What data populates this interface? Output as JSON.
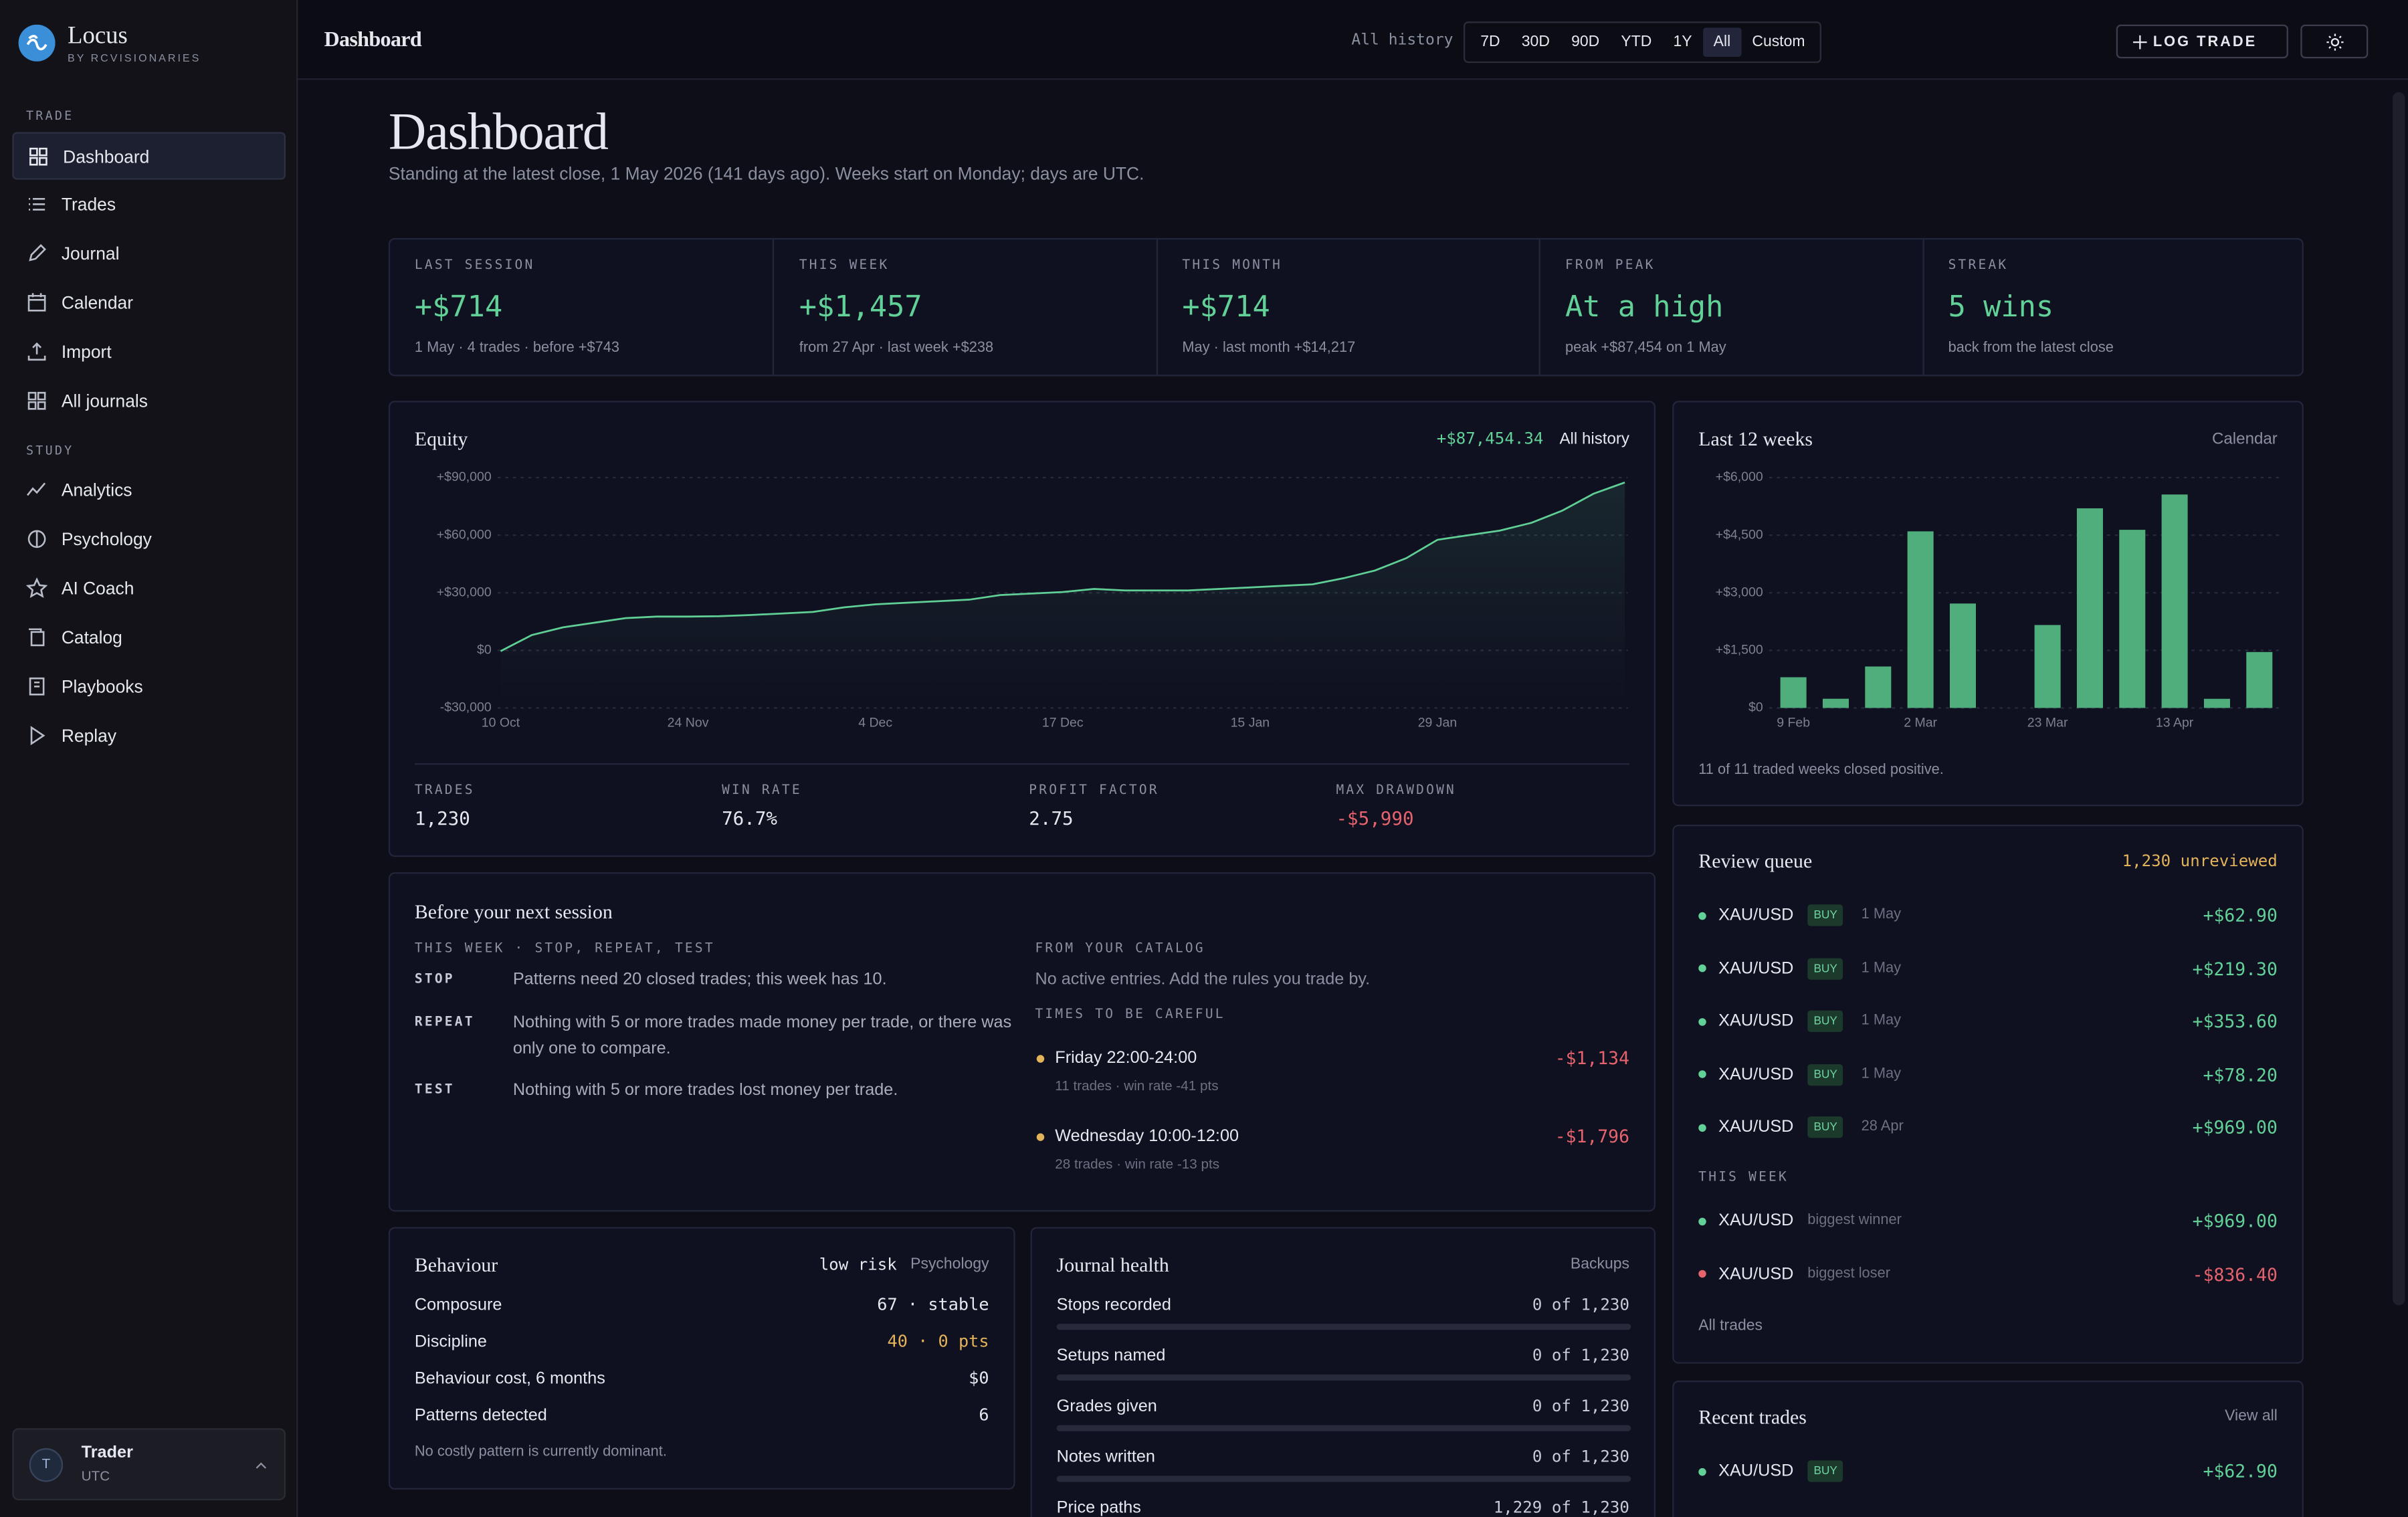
{
  "sidebar": {
    "brand": {
      "name": "Locus",
      "tagline": "BY RCVISIONARIES"
    },
    "active_item": "Dashboard",
    "sections": [
      {
        "title": "TRADE",
        "items": [
          "Dashboard",
          "Trades",
          "Journal",
          "Calendar",
          "Import",
          "All journals"
        ]
      },
      {
        "title": "STUDY",
        "items": [
          "Analytics",
          "Psychology",
          "AI Coach",
          "Catalog",
          "Playbooks",
          "Replay"
        ]
      }
    ],
    "user": {
      "initial": "T",
      "name": "Trader",
      "timezone": "UTC"
    }
  },
  "topbar": {
    "title": "Dashboard",
    "range_label": "All history",
    "ranges": [
      "7D",
      "30D",
      "90D",
      "YTD",
      "1Y",
      "All",
      "Custom"
    ],
    "selected_range": "All",
    "log_trade": "LOG TRADE"
  },
  "header": {
    "title": "Dashboard",
    "subtitle": "Standing at the latest close, 1 May 2026 (141 days ago). Weeks start on Monday; days are UTC."
  },
  "stats": [
    {
      "label": "LAST SESSION",
      "value": "+$714",
      "note": "1 May · 4 trades · before +$743"
    },
    {
      "label": "THIS WEEK",
      "value": "+$1,457",
      "note": "from 27 Apr · last week +$238"
    },
    {
      "label": "THIS MONTH",
      "value": "+$714",
      "note": "May · last month +$14,217"
    },
    {
      "label": "FROM PEAK",
      "value": "At a high",
      "note": "peak +$87,454 on 1 May"
    },
    {
      "label": "STREAK",
      "value": "5 wins",
      "note": "back from the latest close"
    }
  ],
  "chart_data": [
    {
      "type": "line",
      "title": "Equity",
      "headline": "+$87,454.34",
      "scope": "All history",
      "color": "#5fcf95",
      "categories": [
        "10 Oct",
        null,
        null,
        null,
        null,
        null,
        "24 Nov",
        null,
        null,
        null,
        null,
        null,
        "4 Dec",
        null,
        null,
        null,
        null,
        null,
        "17 Dec",
        null,
        null,
        null,
        null,
        null,
        "15 Jan",
        null,
        null,
        null,
        null,
        null,
        "29 Jan",
        null,
        null,
        null,
        null,
        null,
        null
      ],
      "values": [
        -400,
        8000,
        12000,
        14400,
        16800,
        17600,
        17600,
        17800,
        18400,
        19200,
        20000,
        22400,
        24000,
        24800,
        25600,
        26400,
        28800,
        29600,
        30400,
        32000,
        31200,
        31200,
        31200,
        32000,
        32800,
        33600,
        34400,
        37600,
        41600,
        48000,
        57600,
        60000,
        62400,
        66400,
        72800,
        81600,
        87454.34
      ],
      "ylim": [
        -30000,
        90000
      ],
      "yticks": [
        {
          "value": -30000,
          "label": "-$30,000"
        },
        {
          "value": 0,
          "label": "$0"
        },
        {
          "value": 30000,
          "label": "+$30,000"
        },
        {
          "value": 60000,
          "label": "+$60,000"
        },
        {
          "value": 90000,
          "label": "+$90,000"
        }
      ],
      "grid": true
    },
    {
      "type": "bar",
      "title": "Last 12 weeks",
      "link": "Calendar",
      "color": "#4fae7c",
      "categories": [
        "9 Feb",
        null,
        null,
        "2 Mar",
        null,
        null,
        "23 Mar",
        null,
        null,
        "13 Apr",
        null,
        null
      ],
      "values": [
        800,
        240,
        1080,
        4600,
        2720,
        null,
        2160,
        5200,
        4640,
        5560,
        238,
        1457
      ],
      "ylim": [
        0,
        6000
      ],
      "yticks": [
        {
          "value": 0,
          "label": "$0"
        },
        {
          "value": 1500,
          "label": "+$1,500"
        },
        {
          "value": 3000,
          "label": "+$3,000"
        },
        {
          "value": 4500,
          "label": "+$4,500"
        },
        {
          "value": 6000,
          "label": "+$6,000"
        }
      ],
      "grid": true,
      "note": "11 of 11 traded weeks closed positive."
    }
  ],
  "equity_metrics": [
    {
      "label": "TRADES",
      "value": "1,230"
    },
    {
      "label": "WIN RATE",
      "value": "76.7%"
    },
    {
      "label": "PROFIT FACTOR",
      "value": "2.75"
    },
    {
      "label": "MAX DRAWDOWN",
      "value": "-$5,990"
    }
  ],
  "next_session": {
    "title": "Before your next session",
    "week_heading": "THIS WEEK · STOP, REPEAT, TEST",
    "rules": [
      {
        "key": "STOP",
        "text": "Patterns need 20 closed trades; this week has 10."
      },
      {
        "key": "REPEAT",
        "text": "Nothing with 5 or more trades made money per trade, or there was only one to compare."
      },
      {
        "key": "TEST",
        "text": "Nothing with 5 or more trades lost money per trade."
      }
    ],
    "catalog_heading": "FROM YOUR CATALOG",
    "catalog_text": "No active entries. Add the rules you trade by.",
    "careful_heading": "TIMES TO BE CAREFUL",
    "careful": [
      {
        "time": "Friday 22:00-24:00",
        "detail": "11 trades · win rate -41 pts",
        "value": "-$1,134"
      },
      {
        "time": "Wednesday 10:00-12:00",
        "detail": "28 trades · win rate -13 pts",
        "value": "-$1,796"
      }
    ]
  },
  "behaviour": {
    "title": "Behaviour",
    "risk": "low risk",
    "link": "Psychology",
    "rows": [
      {
        "label": "Composure",
        "value": "67 · stable"
      },
      {
        "label": "Discipline",
        "value": "40 · 0 pts",
        "color": "#e3b35a"
      },
      {
        "label": "Behaviour cost, 6 months",
        "value": "$0"
      },
      {
        "label": "Patterns detected",
        "value": "6"
      }
    ],
    "note": "No costly pattern is currently dominant."
  },
  "journal_health": {
    "title": "Journal health",
    "link": "Backups",
    "rows": [
      {
        "label": "Stops recorded",
        "count": 0,
        "total": 1230,
        "text": "0 of 1,230"
      },
      {
        "label": "Setups named",
        "count": 0,
        "total": 1230,
        "text": "0 of 1,230"
      },
      {
        "label": "Grades given",
        "count": 0,
        "total": 1230,
        "text": "0 of 1,230"
      },
      {
        "label": "Notes written",
        "count": 0,
        "total": 1230,
        "text": "0 of 1,230"
      },
      {
        "label": "Price paths",
        "count": 1229,
        "total": 1230,
        "text": "1,229 of 1,230"
      }
    ]
  },
  "review_queue": {
    "title": "Review queue",
    "count": "1,230 unreviewed",
    "items": [
      {
        "symbol": "XAU/USD",
        "side": "BUY",
        "date": "1 May",
        "pnl": "+$62.90"
      },
      {
        "symbol": "XAU/USD",
        "side": "BUY",
        "date": "1 May",
        "pnl": "+$219.30"
      },
      {
        "symbol": "XAU/USD",
        "side": "BUY",
        "date": "1 May",
        "pnl": "+$353.60"
      },
      {
        "symbol": "XAU/USD",
        "side": "BUY",
        "date": "1 May",
        "pnl": "+$78.20"
      },
      {
        "symbol": "XAU/USD",
        "side": "BUY",
        "date": "28 Apr",
        "pnl": "+$969.00"
      }
    ],
    "week_heading": "THIS WEEK",
    "week_items": [
      {
        "symbol": "XAU/USD",
        "tag": "biggest winner",
        "pnl": "+$969.00"
      },
      {
        "symbol": "XAU/USD",
        "tag": "biggest loser",
        "pnl": "-$836.40"
      }
    ],
    "link": "All trades"
  },
  "recent_trades": {
    "title": "Recent trades",
    "link": "View all",
    "items": [
      {
        "symbol": "XAU/USD",
        "side": "BUY",
        "pnl": "+$62.90"
      }
    ]
  }
}
